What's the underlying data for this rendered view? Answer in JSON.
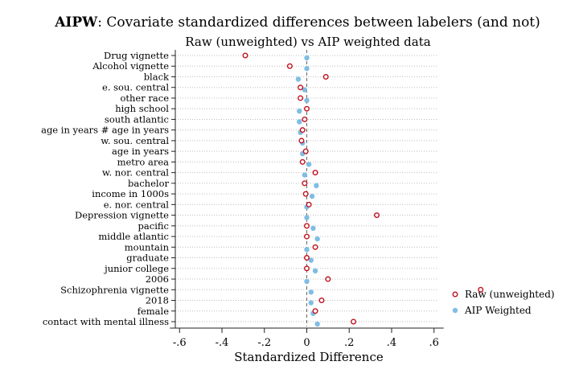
{
  "chart_data": {
    "type": "scatter",
    "title_bold": "AIPW",
    "title_rest": ": Covariate standardized differences between labelers (and not)",
    "subtitle": "Raw (unweighted) vs AIP weighted data",
    "xlabel": "Standardized Difference",
    "xlim": [
      -0.62,
      0.62
    ],
    "xticks": [
      -0.6,
      -0.4,
      -0.2,
      0,
      0.2,
      0.4,
      0.6
    ],
    "xtick_labels": [
      "-.6",
      "-.4",
      "-.2",
      "0",
      ".2",
      ".4",
      ".6"
    ],
    "reference_line_x": 0,
    "grid": true,
    "legend_position": "right",
    "categories": [
      "Drug vignette",
      "Alcohol vignette",
      "black",
      "e. sou. central",
      "other race",
      "high school",
      "south atlantic",
      "age in years # age in years",
      "w. sou. central",
      "age in years",
      "metro area",
      "w. nor. central",
      "bachelor",
      "income in 1000s",
      "e. nor. central",
      "Depression vignette",
      "pacific",
      "middle atlantic",
      "mountain",
      "graduate",
      "junior college",
      "2006",
      "Schizophrenia vignette",
      "2018",
      "female",
      "contact with mental illness"
    ],
    "series": [
      {
        "name": "Raw (unweighted)",
        "color": "#c1121f",
        "marker": "hollow-circle",
        "values": [
          -0.29,
          -0.08,
          0.09,
          -0.03,
          -0.03,
          0.0,
          -0.01,
          -0.02,
          -0.025,
          -0.005,
          -0.02,
          0.04,
          -0.01,
          -0.005,
          0.01,
          0.33,
          0.0,
          0.0,
          0.04,
          0.0,
          0.0,
          0.1,
          0.82,
          0.07,
          0.04,
          0.22
        ]
      },
      {
        "name": "AIP Weighted",
        "color": "#7fbde4",
        "marker": "filled-circle",
        "values": [
          0.0,
          0.0,
          -0.04,
          -0.01,
          0.0,
          -0.035,
          -0.035,
          -0.03,
          -0.02,
          -0.02,
          0.01,
          -0.01,
          0.045,
          0.025,
          0.0,
          0.0,
          0.03,
          0.05,
          0.0,
          0.02,
          0.04,
          0.0,
          0.02,
          0.02,
          0.03,
          0.05
        ]
      }
    ]
  }
}
